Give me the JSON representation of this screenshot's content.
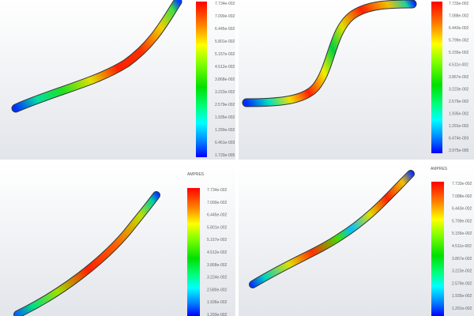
{
  "panels": [
    {
      "title": "",
      "legend_labels": [
        "7.734e-002",
        "7.090e-002",
        "6.445e-002",
        "5.801e-002",
        "5.157e-002",
        "4.512e-002",
        "3.868e-002",
        "3.223e-002",
        "2.579e-002",
        "1.935e-002",
        "1.290e-002",
        "6.461e-003",
        "1.720e-005"
      ]
    },
    {
      "title": "",
      "legend_labels": [
        "7.733e-002",
        "7.088e-002",
        "6.443e-002",
        "5.799e-002",
        "5.155e-002",
        "4.511e-002",
        "3.867e-002",
        "3.223e-002",
        "2.579e-002",
        "1.935e-002",
        "1.291e-002",
        "6.474e-003",
        "3.975e-005"
      ]
    },
    {
      "title": "AMPRES",
      "legend_labels": [
        "7.734e-002",
        "7.090e-002",
        "6.445e-002",
        "5.801e-002",
        "5.157e-002",
        "4.512e-002",
        "3.868e-002",
        "3.224e-002",
        "2.580e-002",
        "1.936e-002",
        "1.293e-002"
      ]
    },
    {
      "title": "AMPRES",
      "legend_labels": [
        "7.733e-002",
        "7.088e-002",
        "6.443e-002",
        "5.799e-002",
        "5.155e-002",
        "4.511e-002",
        "3.867e-002",
        "3.223e-002",
        "2.579e-002",
        "1.935e-002",
        "1.291e-002"
      ]
    }
  ],
  "colormap": [
    "#ff0000",
    "#ff8000",
    "#ffff00",
    "#80ff00",
    "#00e000",
    "#00ff80",
    "#00ffff",
    "#0080ff",
    "#0000ff"
  ]
}
